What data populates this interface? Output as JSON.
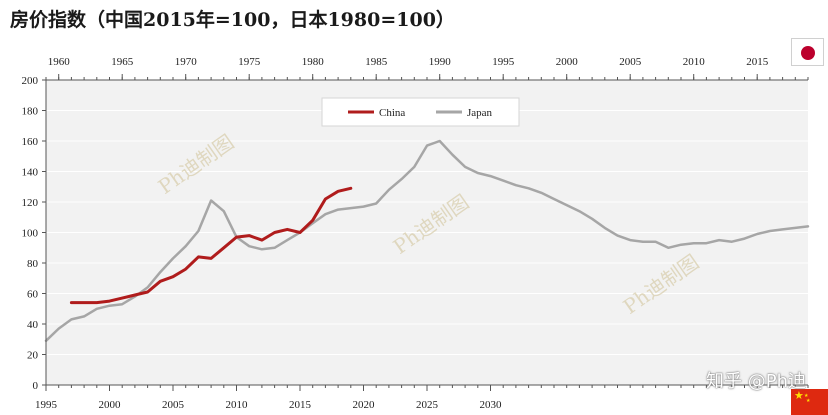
{
  "header": {
    "title": "房价指数（中国2015年=100，日本1980=100）"
  },
  "watermark": {
    "text": "Ph迪制图"
  },
  "brand": {
    "text": "知乎 @Ph迪"
  },
  "flags": {
    "top": "japan-flag",
    "bottom": "china-flag"
  },
  "colors": {
    "china": "#b01c1c",
    "japan": "#a6a6a6",
    "plot_bg": "#f2f2f2",
    "grid": "#ffffff"
  },
  "chart_data": {
    "type": "line",
    "title": "房价指数（中国2015年=100，日本1980=100）",
    "xlabel": "",
    "ylabel": "",
    "ylim": [
      0,
      200
    ],
    "yticks": [
      0,
      20,
      40,
      60,
      80,
      100,
      120,
      140,
      160,
      180,
      200
    ],
    "grid": true,
    "legend_position": "top-center",
    "x_axes": {
      "top": {
        "series": "Japan",
        "range": [
          1959,
          2019
        ],
        "ticks": [
          1960,
          1965,
          1970,
          1975,
          1980,
          1985,
          1990,
          1995,
          2000,
          2005,
          2010,
          2015
        ]
      },
      "bottom": {
        "series": "China",
        "range": [
          1995,
          2055
        ],
        "ticks": [
          1995,
          2000,
          2005,
          2010,
          2015,
          2020,
          2025,
          2030
        ]
      }
    },
    "series": [
      {
        "name": "China",
        "axis": "bottom",
        "color": "#b01c1c",
        "x": [
          1997,
          1998,
          1999,
          2000,
          2001,
          2002,
          2003,
          2004,
          2005,
          2006,
          2007,
          2008,
          2009,
          2010,
          2011,
          2012,
          2013,
          2014,
          2015,
          2016,
          2017,
          2018,
          2019
        ],
        "values": [
          54,
          54,
          54,
          55,
          57,
          59,
          61,
          68,
          71,
          76,
          84,
          83,
          90,
          97,
          98,
          95,
          100,
          102,
          100,
          108,
          122,
          127,
          129
        ]
      },
      {
        "name": "Japan",
        "axis": "top",
        "color": "#a6a6a6",
        "x": [
          1959,
          1960,
          1961,
          1962,
          1963,
          1964,
          1965,
          1966,
          1967,
          1968,
          1969,
          1970,
          1971,
          1972,
          1973,
          1974,
          1975,
          1976,
          1977,
          1978,
          1979,
          1980,
          1981,
          1982,
          1983,
          1984,
          1985,
          1986,
          1987,
          1988,
          1989,
          1990,
          1991,
          1992,
          1993,
          1994,
          1995,
          1996,
          1997,
          1998,
          1999,
          2000,
          2001,
          2002,
          2003,
          2004,
          2005,
          2006,
          2007,
          2008,
          2009,
          2010,
          2011,
          2012,
          2013,
          2014,
          2015,
          2016,
          2017,
          2018,
          2019
        ],
        "values": [
          29,
          37,
          43,
          45,
          50,
          52,
          53,
          58,
          64,
          74,
          83,
          91,
          101,
          121,
          114,
          97,
          91,
          89,
          90,
          95,
          100,
          106,
          112,
          115,
          116,
          117,
          119,
          128,
          135,
          143,
          157,
          160,
          151,
          143,
          139,
          137,
          134,
          131,
          129,
          126,
          122,
          118,
          114,
          109,
          103,
          98,
          95,
          94,
          94,
          90,
          92,
          93,
          93,
          95,
          94,
          96,
          99,
          101,
          102,
          103,
          104
        ]
      }
    ]
  }
}
